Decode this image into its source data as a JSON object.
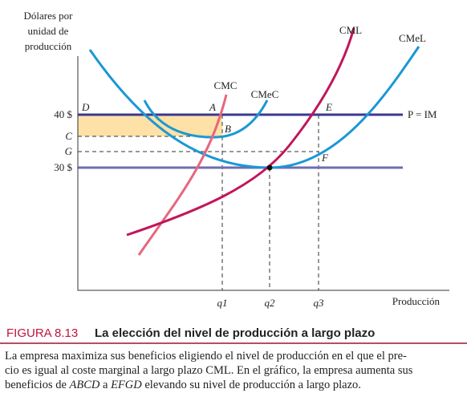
{
  "axis": {
    "y_label": [
      "Dólares por",
      "unidad de",
      "producción"
    ],
    "x_label": "Producción",
    "y_ticks": [
      "40 $",
      "C",
      "G",
      "30 $"
    ],
    "x_ticks": [
      "q1",
      "q2",
      "q3"
    ]
  },
  "points": {
    "D": "D",
    "A": "A",
    "B": "B",
    "E": "E",
    "F": "F"
  },
  "curves": {
    "cmc": "CMC",
    "cmec": "CMeC",
    "cml": "CML",
    "cmel": "CMeL",
    "price": "P = IM"
  },
  "figure": {
    "number": "FIGURA 8.13",
    "title": "La elección del nivel de producción a largo plazo"
  },
  "caption": {
    "line1": "La empresa maximiza sus beneficios eligiendo el nivel de producción en el que el pre-",
    "line2": "cio es igual al coste marginal a largo plazo CML. En el gráfico, la empresa aumenta sus",
    "line3a": "beneficios de ",
    "line3b": "ABCD",
    "line3c": " a ",
    "line3d": "EFGD",
    "line3e": " elevando su nivel de producción a largo plazo."
  }
}
